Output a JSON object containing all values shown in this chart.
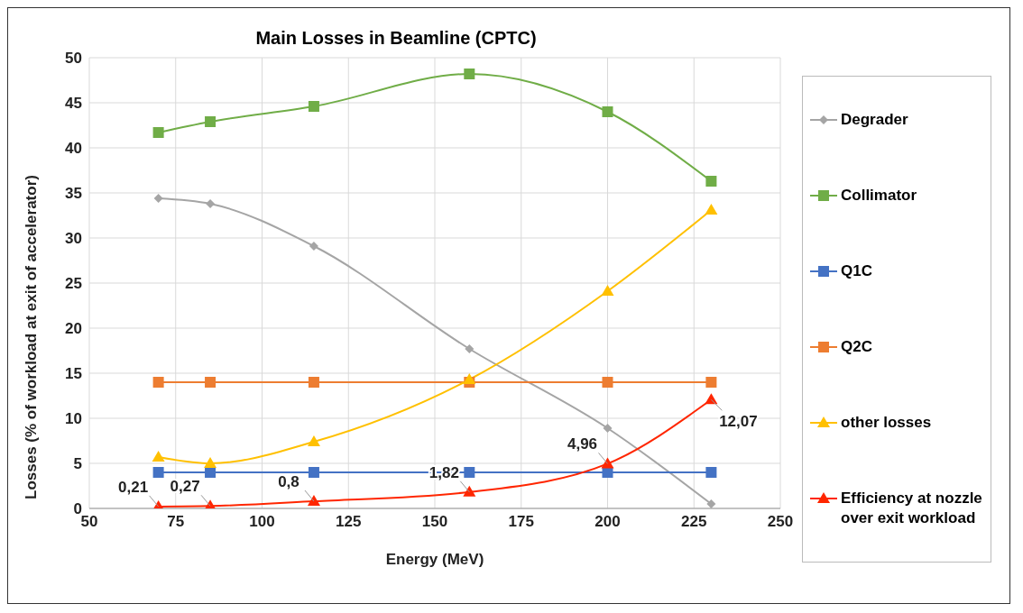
{
  "chart_data": {
    "type": "line",
    "title": "Main Losses in Beamline (CPTC)",
    "xlabel": "Energy (MeV)",
    "ylabel": "Losses (% of workload at exit of accelerator)",
    "x": [
      70,
      85,
      115,
      160,
      200,
      230
    ],
    "series": [
      {
        "name": "Degrader",
        "color": "#a5a5a5",
        "marker": "diamond",
        "values": [
          34.4,
          33.8,
          29.1,
          17.7,
          8.9,
          0.5
        ]
      },
      {
        "name": "Collimator",
        "color": "#70ad47",
        "marker": "square",
        "values": [
          41.7,
          42.9,
          44.6,
          48.2,
          44.0,
          36.3
        ]
      },
      {
        "name": "Q1C",
        "color": "#4472c4",
        "marker": "square",
        "values": [
          4,
          4,
          4,
          4,
          4,
          4
        ]
      },
      {
        "name": "Q2C",
        "color": "#ed7d31",
        "marker": "square",
        "values": [
          14,
          14,
          14,
          14,
          14,
          14
        ]
      },
      {
        "name": "other losses",
        "color": "#ffc000",
        "marker": "triangle",
        "values": [
          5.7,
          5.0,
          7.4,
          14.3,
          24.1,
          33.1
        ]
      },
      {
        "name": "Efficiency at nozzle over exit workload",
        "color": "#ff2600",
        "marker": "triangle",
        "values": [
          0.21,
          0.27,
          0.8,
          1.82,
          4.96,
          12.07
        ],
        "value_labels": [
          "0,21",
          "0,27",
          "0,8",
          "1,82",
          "4,96",
          "12,07"
        ]
      }
    ],
    "xlim": [
      50,
      250
    ],
    "xticks": [
      50,
      75,
      100,
      125,
      150,
      175,
      200,
      225,
      250
    ],
    "ylim": [
      0,
      50
    ],
    "yticks": [
      0,
      5,
      10,
      15,
      20,
      25,
      30,
      35,
      40,
      45,
      50
    ],
    "grid": true,
    "legend": "right"
  }
}
